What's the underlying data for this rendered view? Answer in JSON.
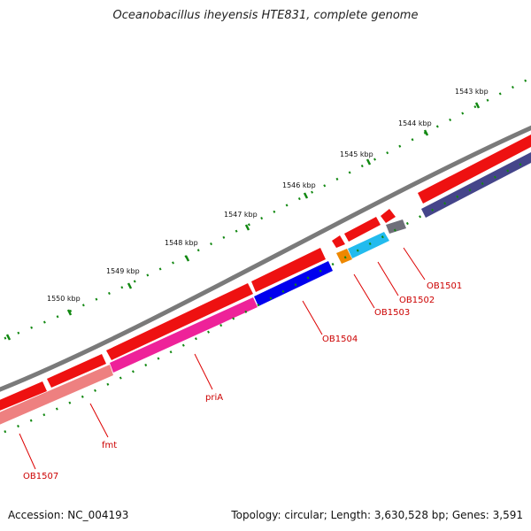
{
  "title": "Oceanobacillus iheyensis HTE831, complete genome",
  "footer": {
    "accession": "Accession: NC_004193",
    "summary": "Topology: circular; Length: 3,630,528 bp; Genes: 3,591"
  },
  "ruler": {
    "labels": [
      "1543 kbp",
      "1544 kbp",
      "1545 kbp",
      "1546 kbp",
      "1547 kbp",
      "1548 kbp",
      "1549 kbp",
      "1550 kbp"
    ]
  },
  "genes": [
    {
      "name": "OB1501"
    },
    {
      "name": "OB1502"
    },
    {
      "name": "OB1503"
    },
    {
      "name": "OB1504"
    },
    {
      "name": "priA"
    },
    {
      "name": "fmt"
    },
    {
      "name": "OB1507"
    }
  ],
  "colors": {
    "backbone": "#808080",
    "forward_gene": "#ee0000",
    "tick": "#007700",
    "label": "#cc0000"
  }
}
